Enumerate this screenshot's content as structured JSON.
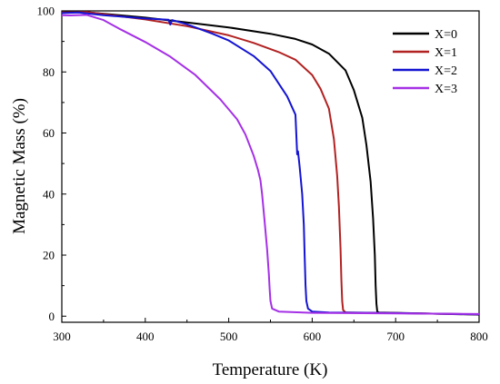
{
  "chart_data": {
    "type": "line",
    "title": "",
    "xlabel": "Temperature (K)",
    "ylabel": "Magnetic Mass (%)",
    "xlim": [
      300,
      800
    ],
    "ylim": [
      -2,
      100
    ],
    "xticks": [
      300,
      400,
      500,
      600,
      700,
      800
    ],
    "yticks": [
      0,
      20,
      40,
      60,
      80,
      100
    ],
    "grid": false,
    "legend_position": "top-right",
    "series": [
      {
        "name": "X=0",
        "color": "#000000",
        "points": [
          [
            300,
            99.5
          ],
          [
            320,
            99.8
          ],
          [
            360,
            98.8
          ],
          [
            400,
            97.8
          ],
          [
            450,
            96.2
          ],
          [
            500,
            94.6
          ],
          [
            550,
            92.5
          ],
          [
            580,
            90.8
          ],
          [
            600,
            89
          ],
          [
            620,
            86
          ],
          [
            640,
            80.5
          ],
          [
            650,
            74
          ],
          [
            660,
            65
          ],
          [
            665,
            56
          ],
          [
            670,
            44
          ],
          [
            673,
            32
          ],
          [
            675,
            20
          ],
          [
            676,
            10
          ],
          [
            677,
            4
          ],
          [
            678,
            1.5
          ],
          [
            680,
            1.2
          ],
          [
            700,
            1.1
          ],
          [
            750,
            0.8
          ],
          [
            800,
            0.5
          ]
        ]
      },
      {
        "name": "X=1",
        "color": "#b22222",
        "points": [
          [
            300,
            99.5
          ],
          [
            330,
            99.6
          ],
          [
            360,
            98.6
          ],
          [
            400,
            97.2
          ],
          [
            450,
            95
          ],
          [
            500,
            92
          ],
          [
            530,
            89.5
          ],
          [
            560,
            86.5
          ],
          [
            580,
            84
          ],
          [
            600,
            79
          ],
          [
            610,
            74.5
          ],
          [
            620,
            68
          ],
          [
            626,
            58
          ],
          [
            630,
            46
          ],
          [
            632,
            36
          ],
          [
            634,
            22
          ],
          [
            635,
            12
          ],
          [
            636,
            5
          ],
          [
            637,
            2
          ],
          [
            640,
            1.2
          ],
          [
            700,
            1
          ],
          [
            800,
            0.6
          ]
        ]
      },
      {
        "name": "X=2",
        "color": "#1414d2",
        "points": [
          [
            300,
            99.3
          ],
          [
            320,
            99.5
          ],
          [
            350,
            98.6
          ],
          [
            400,
            97.5
          ],
          [
            428,
            97.1
          ],
          [
            430,
            95.5
          ],
          [
            432,
            97
          ],
          [
            450,
            95.6
          ],
          [
            480,
            92.6
          ],
          [
            500,
            90.3
          ],
          [
            530,
            85.2
          ],
          [
            550,
            80.3
          ],
          [
            570,
            72
          ],
          [
            580,
            66
          ],
          [
            582,
            53
          ],
          [
            583,
            54
          ],
          [
            585,
            49
          ],
          [
            588,
            40
          ],
          [
            590,
            30
          ],
          [
            591,
            20
          ],
          [
            592,
            10
          ],
          [
            593,
            5
          ],
          [
            595,
            2.5
          ],
          [
            600,
            1.5
          ],
          [
            620,
            1.2
          ],
          [
            700,
            1
          ],
          [
            800,
            0.6
          ]
        ]
      },
      {
        "name": "X=3",
        "color": "#a530e6",
        "points": [
          [
            300,
            98.6
          ],
          [
            310,
            98.5
          ],
          [
            330,
            98.7
          ],
          [
            350,
            97
          ],
          [
            370,
            94
          ],
          [
            400,
            89.8
          ],
          [
            430,
            85
          ],
          [
            460,
            79
          ],
          [
            490,
            71
          ],
          [
            510,
            64.5
          ],
          [
            520,
            59.5
          ],
          [
            530,
            52.5
          ],
          [
            535,
            48
          ],
          [
            538,
            44.5
          ],
          [
            540,
            40
          ],
          [
            543,
            31
          ],
          [
            546,
            22
          ],
          [
            548,
            14
          ],
          [
            549,
            9
          ],
          [
            550,
            5
          ],
          [
            552,
            2.5
          ],
          [
            560,
            1.5
          ],
          [
            600,
            1.1
          ],
          [
            700,
            0.9
          ],
          [
            800,
            0.7
          ]
        ]
      }
    ]
  }
}
